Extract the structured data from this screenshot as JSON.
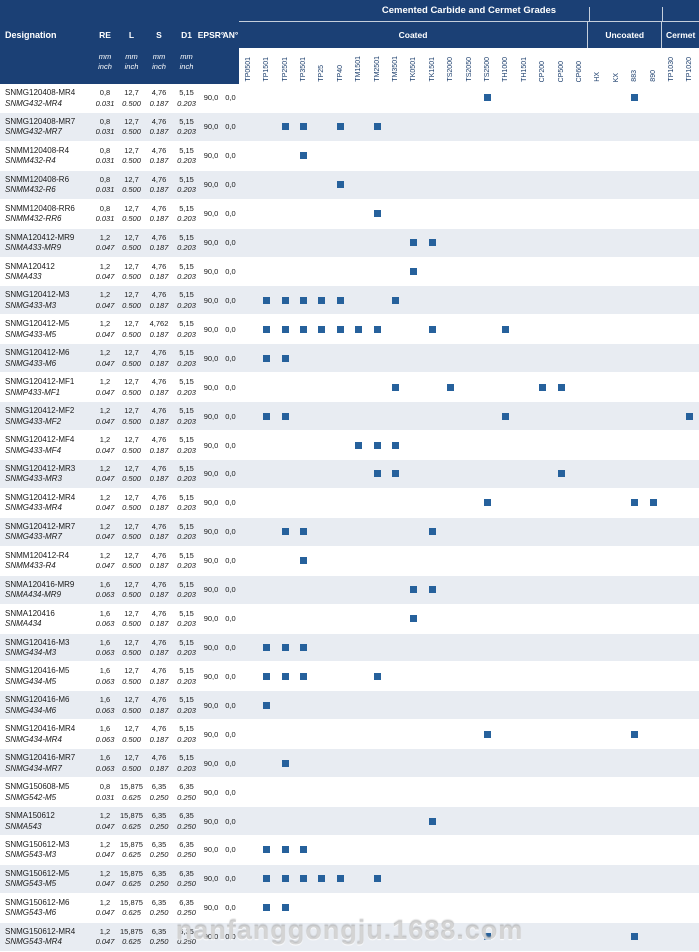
{
  "header": {
    "group_title": "Cemented Carbide and Cermet Grades",
    "designation_label": "Designation",
    "dim_columns": [
      "RE",
      "L",
      "S",
      "D1"
    ],
    "angle_columns": [
      "EPSR°",
      "AN°"
    ],
    "unit_top": "mm",
    "unit_bottom": "inch",
    "groups": [
      {
        "label": "Coated",
        "span": 19
      },
      {
        "label": "Uncoated",
        "span": 4
      },
      {
        "label": "Cermet",
        "span": 2
      }
    ],
    "grades": [
      "TP0501",
      "TP1501",
      "TP2501",
      "TP3501",
      "TP25",
      "TP40",
      "TM1501",
      "TM2501",
      "TM3501",
      "TK0501",
      "TK1501",
      "TS2000",
      "TS2050",
      "TS2500",
      "TH1000",
      "TH1501",
      "CP200",
      "CP500",
      "CP600",
      "HX",
      "KX",
      "883",
      "890",
      "TP1030",
      "TP1020"
    ]
  },
  "colors": {
    "header_bg": "#1b4075",
    "row_alt_bg": "#e8ecf2",
    "marker": "#26619c"
  },
  "watermark": "nanfanggongju.1688.com",
  "rows": [
    {
      "d": "SNMG120408-MR4",
      "sub": "SNMG432-MR4",
      "re": "0,8",
      "rei": "0.031",
      "l": "12,7",
      "li": "0.500",
      "s": "4,76",
      "si": "0.187",
      "d1": "5,15",
      "d1i": "0.203",
      "epsr": "90,0",
      "an": "0,0",
      "g": [
        "TS2500",
        "883"
      ]
    },
    {
      "d": "SNMG120408-MR7",
      "sub": "SNMG432-MR7",
      "re": "0,8",
      "rei": "0.031",
      "l": "12,7",
      "li": "0.500",
      "s": "4,76",
      "si": "0.187",
      "d1": "5,15",
      "d1i": "0.203",
      "epsr": "90,0",
      "an": "0,0",
      "g": [
        "TP2501",
        "TP3501",
        "TP40",
        "TM2501"
      ]
    },
    {
      "d": "SNMM120408-R4",
      "sub": "SNMM432-R4",
      "re": "0,8",
      "rei": "0.031",
      "l": "12,7",
      "li": "0.500",
      "s": "4,76",
      "si": "0.187",
      "d1": "5,15",
      "d1i": "0.203",
      "epsr": "90,0",
      "an": "0,0",
      "g": [
        "TP3501"
      ]
    },
    {
      "d": "SNMM120408-R6",
      "sub": "SNMM432-R6",
      "re": "0,8",
      "rei": "0.031",
      "l": "12,7",
      "li": "0.500",
      "s": "4,76",
      "si": "0.187",
      "d1": "5,15",
      "d1i": "0.203",
      "epsr": "90,0",
      "an": "0,0",
      "g": [
        "TP40"
      ]
    },
    {
      "d": "SNMM120408-RR6",
      "sub": "SNMM432-RR6",
      "re": "0,8",
      "rei": "0.031",
      "l": "12,7",
      "li": "0.500",
      "s": "4,76",
      "si": "0.187",
      "d1": "5,15",
      "d1i": "0.203",
      "epsr": "90,0",
      "an": "0,0",
      "g": [
        "TM2501"
      ]
    },
    {
      "d": "SNMA120412-MR9",
      "sub": "SNMA433-MR9",
      "re": "1,2",
      "rei": "0.047",
      "l": "12,7",
      "li": "0.500",
      "s": "4,76",
      "si": "0.187",
      "d1": "5,15",
      "d1i": "0.203",
      "epsr": "90,0",
      "an": "0,0",
      "g": [
        "TK0501",
        "TK1501"
      ]
    },
    {
      "d": "SNMA120412",
      "sub": "SNMA433",
      "re": "1,2",
      "rei": "0.047",
      "l": "12,7",
      "li": "0.500",
      "s": "4,76",
      "si": "0.187",
      "d1": "5,15",
      "d1i": "0.203",
      "epsr": "90,0",
      "an": "0,0",
      "g": [
        "TK0501"
      ]
    },
    {
      "d": "SNMG120412-M3",
      "sub": "SNMG433-M3",
      "re": "1,2",
      "rei": "0.047",
      "l": "12,7",
      "li": "0.500",
      "s": "4,76",
      "si": "0.187",
      "d1": "5,15",
      "d1i": "0.203",
      "epsr": "90,0",
      "an": "0,0",
      "g": [
        "TP1501",
        "TP2501",
        "TP3501",
        "TP25",
        "TP40",
        "TM3501"
      ]
    },
    {
      "d": "SNMG120412-M5",
      "sub": "SNMG433-M5",
      "re": "1,2",
      "rei": "0.047",
      "l": "12,7",
      "li": "0.500",
      "s": "4,762",
      "si": "0.187",
      "d1": "5,15",
      "d1i": "0.203",
      "epsr": "90,0",
      "an": "0,0",
      "g": [
        "TP1501",
        "TP2501",
        "TP3501",
        "TP25",
        "TP40",
        "TM1501",
        "TM2501",
        "TK1501",
        "TH1000"
      ]
    },
    {
      "d": "SNMG120412-M6",
      "sub": "SNMG433-M6",
      "re": "1,2",
      "rei": "0.047",
      "l": "12,7",
      "li": "0.500",
      "s": "4,76",
      "si": "0.187",
      "d1": "5,15",
      "d1i": "0.203",
      "epsr": "90,0",
      "an": "0,0",
      "g": [
        "TP1501",
        "TP2501"
      ]
    },
    {
      "d": "SNMG120412-MF1",
      "sub": "SNMP433-MF1",
      "re": "1,2",
      "rei": "0.047",
      "l": "12,7",
      "li": "0.500",
      "s": "4,76",
      "si": "0.187",
      "d1": "5,15",
      "d1i": "0.203",
      "epsr": "90,0",
      "an": "0,0",
      "g": [
        "TM3501",
        "TS2000",
        "CP200",
        "CP500"
      ]
    },
    {
      "d": "SNMG120412-MF2",
      "sub": "SNMG433-MF2",
      "re": "1,2",
      "rei": "0.047",
      "l": "12,7",
      "li": "0.500",
      "s": "4,76",
      "si": "0.187",
      "d1": "5,15",
      "d1i": "0.203",
      "epsr": "90,0",
      "an": "0,0",
      "g": [
        "TP1501",
        "TP2501",
        "TH1000",
        "TP1020"
      ]
    },
    {
      "d": "SNMG120412-MF4",
      "sub": "SNMG433-MF4",
      "re": "1,2",
      "rei": "0.047",
      "l": "12,7",
      "li": "0.500",
      "s": "4,76",
      "si": "0.187",
      "d1": "5,15",
      "d1i": "0.203",
      "epsr": "90,0",
      "an": "0,0",
      "g": [
        "TM1501",
        "TM2501",
        "TM3501"
      ]
    },
    {
      "d": "SNMG120412-MR3",
      "sub": "SNMG433-MR3",
      "re": "1,2",
      "rei": "0.047",
      "l": "12,7",
      "li": "0.500",
      "s": "4,76",
      "si": "0.187",
      "d1": "5,15",
      "d1i": "0.203",
      "epsr": "90,0",
      "an": "0,0",
      "g": [
        "TM2501",
        "TM3501",
        "CP500"
      ]
    },
    {
      "d": "SNMG120412-MR4",
      "sub": "SNMG433-MR4",
      "re": "1,2",
      "rei": "0.047",
      "l": "12,7",
      "li": "0.500",
      "s": "4,76",
      "si": "0.187",
      "d1": "5,15",
      "d1i": "0.203",
      "epsr": "90,0",
      "an": "0,0",
      "g": [
        "TS2500",
        "883",
        "890"
      ]
    },
    {
      "d": "SNMG120412-MR7",
      "sub": "SNMG433-MR7",
      "re": "1,2",
      "rei": "0.047",
      "l": "12,7",
      "li": "0.500",
      "s": "4,76",
      "si": "0.187",
      "d1": "5,15",
      "d1i": "0.203",
      "epsr": "90,0",
      "an": "0,0",
      "g": [
        "TP2501",
        "TP3501",
        "TK1501"
      ]
    },
    {
      "d": "SNMM120412-R4",
      "sub": "SNMM433-R4",
      "re": "1,2",
      "rei": "0.047",
      "l": "12,7",
      "li": "0.500",
      "s": "4,76",
      "si": "0.187",
      "d1": "5,15",
      "d1i": "0.203",
      "epsr": "90,0",
      "an": "0,0",
      "g": [
        "TP3501"
      ]
    },
    {
      "d": "SNMA120416-MR9",
      "sub": "SNMA434-MR9",
      "re": "1,6",
      "rei": "0.063",
      "l": "12,7",
      "li": "0.500",
      "s": "4,76",
      "si": "0.187",
      "d1": "5,15",
      "d1i": "0.203",
      "epsr": "90,0",
      "an": "0,0",
      "g": [
        "TK0501",
        "TK1501"
      ]
    },
    {
      "d": "SNMA120416",
      "sub": "SNMA434",
      "re": "1,6",
      "rei": "0.063",
      "l": "12,7",
      "li": "0.500",
      "s": "4,76",
      "si": "0.187",
      "d1": "5,15",
      "d1i": "0.203",
      "epsr": "90,0",
      "an": "0,0",
      "g": [
        "TK0501"
      ]
    },
    {
      "d": "SNMG120416-M3",
      "sub": "SNMG434-M3",
      "re": "1,6",
      "rei": "0.063",
      "l": "12,7",
      "li": "0.500",
      "s": "4,76",
      "si": "0.187",
      "d1": "5,15",
      "d1i": "0.203",
      "epsr": "90,0",
      "an": "0,0",
      "g": [
        "TP1501",
        "TP2501",
        "TP3501"
      ]
    },
    {
      "d": "SNMG120416-M5",
      "sub": "SNMG434-M5",
      "re": "1,6",
      "rei": "0.063",
      "l": "12,7",
      "li": "0.500",
      "s": "4,76",
      "si": "0.187",
      "d1": "5,15",
      "d1i": "0.203",
      "epsr": "90,0",
      "an": "0,0",
      "g": [
        "TP1501",
        "TP2501",
        "TP3501",
        "TM2501"
      ]
    },
    {
      "d": "SNMG120416-M6",
      "sub": "SNMG434-M6",
      "re": "1,6",
      "rei": "0.063",
      "l": "12,7",
      "li": "0.500",
      "s": "4,76",
      "si": "0.187",
      "d1": "5,15",
      "d1i": "0.203",
      "epsr": "90,0",
      "an": "0,0",
      "g": [
        "TP1501"
      ]
    },
    {
      "d": "SNMG120416-MR4",
      "sub": "SNMG434-MR4",
      "re": "1,6",
      "rei": "0.063",
      "l": "12,7",
      "li": "0.500",
      "s": "4,76",
      "si": "0.187",
      "d1": "5,15",
      "d1i": "0.203",
      "epsr": "90,0",
      "an": "0,0",
      "g": [
        "TS2500",
        "883"
      ]
    },
    {
      "d": "SNMG120416-MR7",
      "sub": "SNMG434-MR7",
      "re": "1,6",
      "rei": "0.063",
      "l": "12,7",
      "li": "0.500",
      "s": "4,76",
      "si": "0.187",
      "d1": "5,15",
      "d1i": "0.203",
      "epsr": "90,0",
      "an": "0,0",
      "g": [
        "TP2501"
      ]
    },
    {
      "d": "SNMG150608-M5",
      "sub": "SNMG542-M5",
      "re": "0,8",
      "rei": "0.031",
      "l": "15,875",
      "li": "0.625",
      "s": "6,35",
      "si": "0.250",
      "d1": "6,35",
      "d1i": "0.250",
      "epsr": "90,0",
      "an": "0,0",
      "g": []
    },
    {
      "d": "SNMA150612",
      "sub": "SNMA543",
      "re": "1,2",
      "rei": "0.047",
      "l": "15,875",
      "li": "0.625",
      "s": "6,35",
      "si": "0.250",
      "d1": "6,35",
      "d1i": "0.250",
      "epsr": "90,0",
      "an": "0,0",
      "g": [
        "TK1501"
      ]
    },
    {
      "d": "SNMG150612-M3",
      "sub": "SNMG543-M3",
      "re": "1,2",
      "rei": "0.047",
      "l": "15,875",
      "li": "0.625",
      "s": "6,35",
      "si": "0.250",
      "d1": "6,35",
      "d1i": "0.250",
      "epsr": "90,0",
      "an": "0,0",
      "g": [
        "TP1501",
        "TP2501",
        "TP3501"
      ]
    },
    {
      "d": "SNMG150612-M5",
      "sub": "SNMG543-M5",
      "re": "1,2",
      "rei": "0.047",
      "l": "15,875",
      "li": "0.625",
      "s": "6,35",
      "si": "0.250",
      "d1": "6,35",
      "d1i": "0.250",
      "epsr": "90,0",
      "an": "0,0",
      "g": [
        "TP1501",
        "TP2501",
        "TP3501",
        "TP25",
        "TP40",
        "TM2501"
      ]
    },
    {
      "d": "SNMG150612-M6",
      "sub": "SNMG543-M6",
      "re": "1,2",
      "rei": "0.047",
      "l": "15,875",
      "li": "0.625",
      "s": "6,35",
      "si": "0.250",
      "d1": "6,35",
      "d1i": "0.250",
      "epsr": "90,0",
      "an": "0,0",
      "g": [
        "TP1501",
        "TP2501"
      ]
    },
    {
      "d": "SNMG150612-MR4",
      "sub": "SNMG543-MR4",
      "re": "1,2",
      "rei": "0.047",
      "l": "15,875",
      "li": "0.625",
      "s": "6,35",
      "si": "0.250",
      "d1": "6,35",
      "d1i": "0.250",
      "epsr": "90,0",
      "an": "0,0",
      "g": [
        "TS2500",
        "883"
      ]
    }
  ]
}
